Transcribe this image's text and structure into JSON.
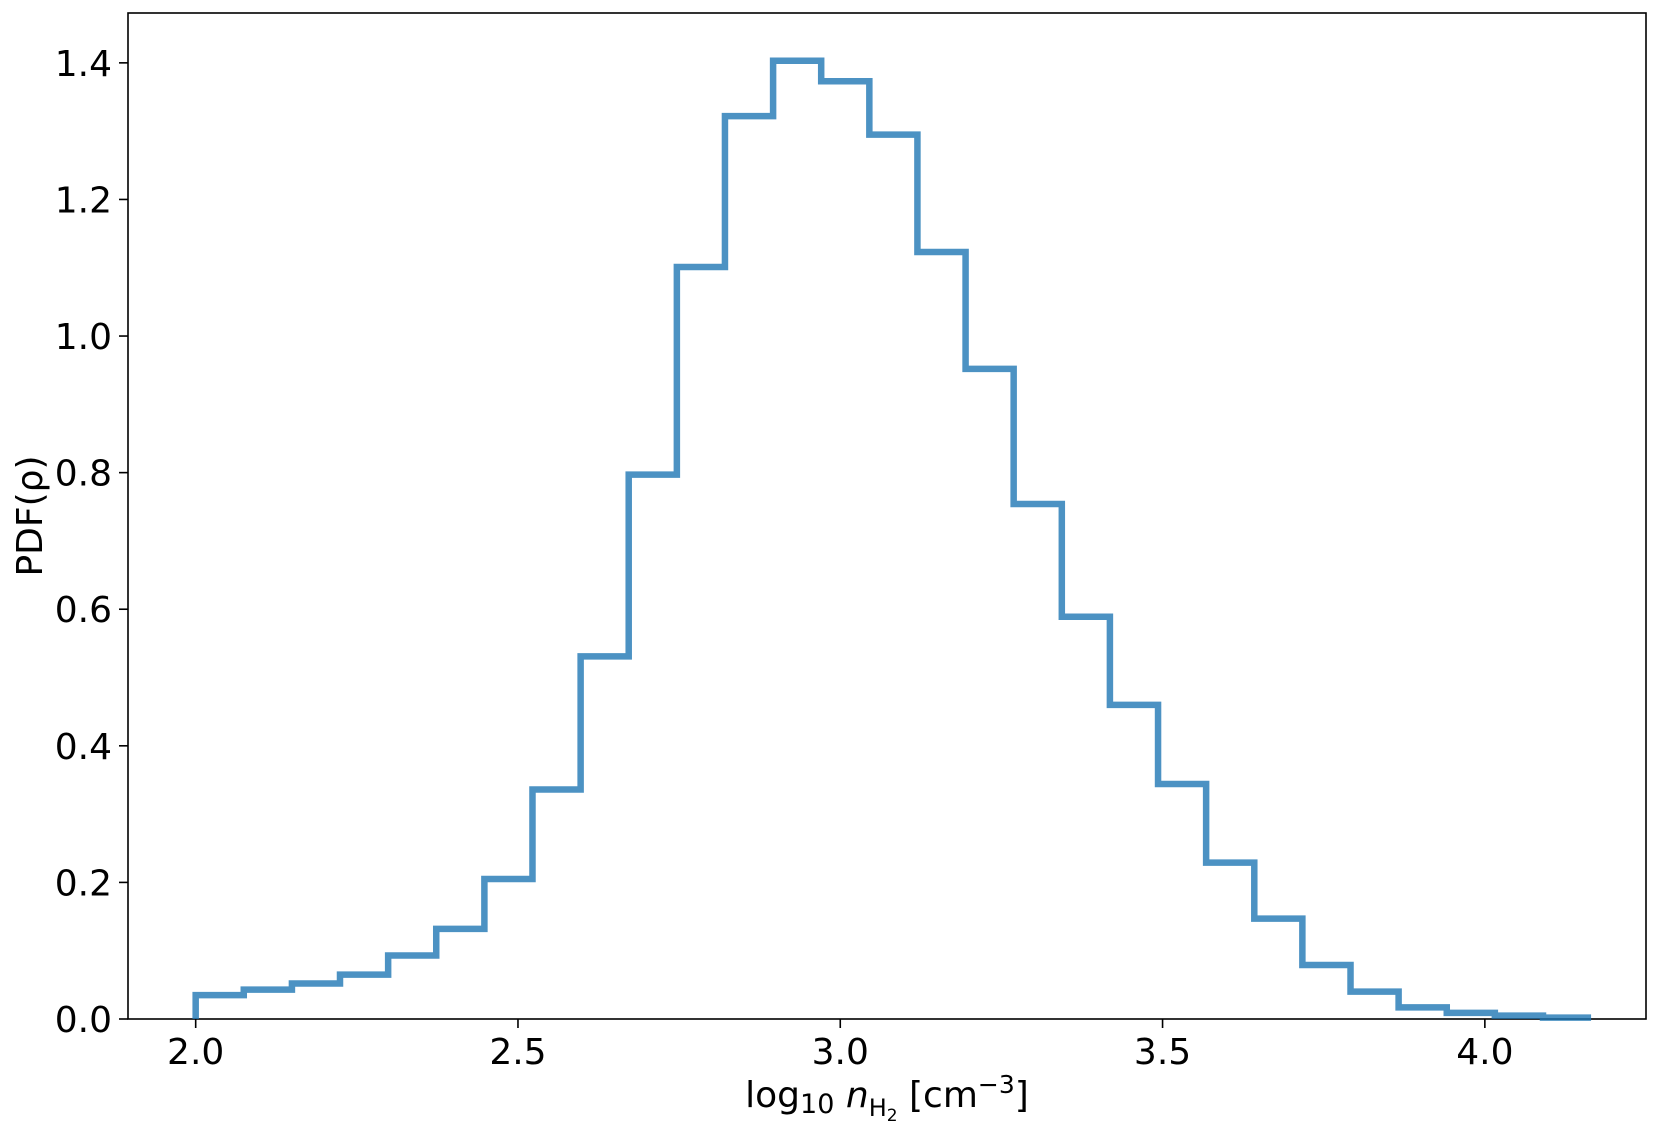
{
  "chart_data": {
    "type": "histogram",
    "title": "",
    "xlabel": {
      "prefix": "log",
      "prefix_sub": "10",
      "var": "n",
      "var_sub": "H",
      "var_sub_sub": "2",
      "unit_open": " [cm",
      "unit_sup": "−3",
      "unit_close": "]"
    },
    "ylabel": "PDF(ρ)",
    "xlim": [
      1.895,
      4.25
    ],
    "ylim": [
      0.0,
      1.473
    ],
    "xticks": [
      2.0,
      2.5,
      3.0,
      3.5,
      4.0
    ],
    "xtick_labels": [
      "2.0",
      "2.5",
      "3.0",
      "3.5",
      "4.0"
    ],
    "yticks": [
      0.0,
      0.2,
      0.4,
      0.6,
      0.8,
      1.0,
      1.2,
      1.4
    ],
    "ytick_labels": [
      "0.0",
      "0.2",
      "0.4",
      "0.6",
      "0.8",
      "1.0",
      "1.2",
      "1.4"
    ],
    "bin_edges": [
      2.0,
      2.0746,
      2.1493,
      2.2239,
      2.2986,
      2.3732,
      2.4479,
      2.5225,
      2.5972,
      2.6718,
      2.7465,
      2.8211,
      2.8958,
      2.9704,
      3.0451,
      3.1197,
      3.1944,
      3.269,
      3.3437,
      3.4183,
      3.493,
      3.5676,
      3.6423,
      3.7169,
      3.7916,
      3.8662,
      3.9409,
      4.0155,
      4.0902,
      4.1648
    ],
    "values": [
      0.035,
      0.043,
      0.052,
      0.065,
      0.093,
      0.132,
      0.205,
      0.336,
      0.531,
      0.797,
      1.101,
      1.322,
      1.403,
      1.373,
      1.295,
      1.123,
      0.952,
      0.754,
      0.589,
      0.46,
      0.344,
      0.229,
      0.147,
      0.079,
      0.04,
      0.017,
      0.009,
      0.005,
      0.002
    ],
    "style": "step",
    "color": "#1f77b4",
    "alpha": 0.8,
    "grid": false,
    "legend": false
  }
}
